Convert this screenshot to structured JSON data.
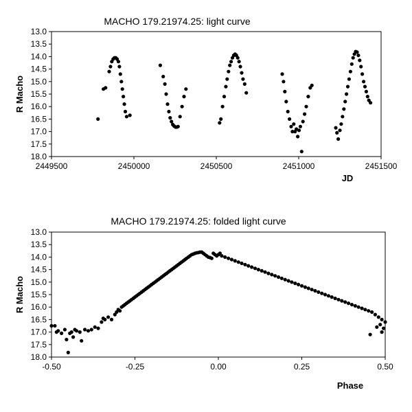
{
  "chart_data": [
    {
      "type": "scatter",
      "title": "MACHO 179.21974.25: light curve",
      "xlabel": "JD",
      "ylabel": "R Macho",
      "xlim": [
        2449500,
        2451500
      ],
      "ylim": [
        13.0,
        18.0
      ],
      "y_inverted": true,
      "grid": false,
      "legend": "none",
      "marker_color": "#000000",
      "xticks": [
        2449500,
        2450000,
        2450500,
        2451000,
        2451500
      ],
      "xtick_labels": [
        "2449500",
        "2450000",
        "2450500",
        "2451000",
        "2451500"
      ],
      "yticks": [
        13.0,
        13.5,
        14.0,
        14.5,
        15.0,
        15.5,
        16.0,
        16.5,
        17.0,
        17.5,
        18.0
      ],
      "ytick_labels": [
        "13.0",
        "13.5",
        "14.0",
        "14.5",
        "15.0",
        "15.5",
        "16.0",
        "16.5",
        "17.0",
        "17.5",
        "18.0"
      ],
      "points": [
        [
          2449782,
          16.5
        ],
        [
          2449815,
          15.3
        ],
        [
          2449828,
          15.25
        ],
        [
          2449850,
          14.6
        ],
        [
          2449858,
          14.4
        ],
        [
          2449866,
          14.2
        ],
        [
          2449874,
          14.1
        ],
        [
          2449882,
          14.05
        ],
        [
          2449890,
          14.05
        ],
        [
          2449898,
          14.1
        ],
        [
          2449906,
          14.2
        ],
        [
          2449912,
          14.4
        ],
        [
          2449918,
          14.7
        ],
        [
          2449924,
          15.0
        ],
        [
          2449930,
          15.3
        ],
        [
          2449936,
          15.6
        ],
        [
          2449942,
          15.9
        ],
        [
          2449948,
          16.2
        ],
        [
          2449956,
          16.4
        ],
        [
          2449976,
          16.35
        ],
        [
          2450160,
          14.35
        ],
        [
          2450178,
          14.8
        ],
        [
          2450188,
          15.1
        ],
        [
          2450196,
          15.5
        ],
        [
          2450204,
          15.9
        ],
        [
          2450212,
          16.2
        ],
        [
          2450220,
          16.45
        ],
        [
          2450228,
          16.6
        ],
        [
          2450236,
          16.72
        ],
        [
          2450244,
          16.78
        ],
        [
          2450252,
          16.82
        ],
        [
          2450260,
          16.82
        ],
        [
          2450268,
          16.8
        ],
        [
          2450280,
          16.4
        ],
        [
          2450292,
          16.0
        ],
        [
          2450304,
          15.6
        ],
        [
          2450316,
          15.3
        ],
        [
          2450520,
          16.65
        ],
        [
          2450528,
          16.5
        ],
        [
          2450538,
          16.0
        ],
        [
          2450548,
          15.6
        ],
        [
          2450558,
          15.2
        ],
        [
          2450566,
          14.9
        ],
        [
          2450574,
          14.6
        ],
        [
          2450582,
          14.35
        ],
        [
          2450590,
          14.2
        ],
        [
          2450598,
          14.05
        ],
        [
          2450606,
          13.95
        ],
        [
          2450614,
          13.9
        ],
        [
          2450622,
          13.95
        ],
        [
          2450630,
          14.05
        ],
        [
          2450638,
          14.2
        ],
        [
          2450646,
          14.4
        ],
        [
          2450654,
          14.65
        ],
        [
          2450662,
          14.9
        ],
        [
          2450672,
          15.1
        ],
        [
          2450682,
          15.45
        ],
        [
          2450900,
          14.7
        ],
        [
          2450908,
          15.0
        ],
        [
          2450916,
          15.4
        ],
        [
          2450924,
          15.8
        ],
        [
          2450934,
          16.2
        ],
        [
          2450944,
          16.5
        ],
        [
          2450954,
          16.8
        ],
        [
          2450962,
          17.0
        ],
        [
          2450970,
          16.7
        ],
        [
          2450978,
          17.0
        ],
        [
          2450986,
          16.9
        ],
        [
          2450994,
          17.2
        ],
        [
          2451002,
          16.95
        ],
        [
          2451010,
          16.8
        ],
        [
          2451018,
          17.8
        ],
        [
          2451026,
          16.6
        ],
        [
          2451036,
          16.3
        ],
        [
          2451046,
          16.0
        ],
        [
          2451058,
          15.6
        ],
        [
          2451070,
          15.25
        ],
        [
          2451080,
          15.15
        ],
        [
          2451225,
          16.85
        ],
        [
          2451232,
          17.05
        ],
        [
          2451240,
          17.3
        ],
        [
          2451250,
          16.95
        ],
        [
          2451258,
          16.7
        ],
        [
          2451266,
          16.4
        ],
        [
          2451274,
          16.1
        ],
        [
          2451282,
          15.8
        ],
        [
          2451290,
          15.5
        ],
        [
          2451298,
          15.2
        ],
        [
          2451306,
          14.9
        ],
        [
          2451314,
          14.6
        ],
        [
          2451322,
          14.3
        ],
        [
          2451330,
          14.05
        ],
        [
          2451338,
          13.9
        ],
        [
          2451346,
          13.8
        ],
        [
          2451354,
          13.82
        ],
        [
          2451362,
          13.95
        ],
        [
          2451370,
          14.15
        ],
        [
          2451378,
          14.4
        ],
        [
          2451386,
          14.7
        ],
        [
          2451394,
          15.0
        ],
        [
          2451402,
          15.2
        ],
        [
          2451410,
          15.4
        ],
        [
          2451418,
          15.6
        ],
        [
          2451426,
          15.75
        ],
        [
          2451436,
          15.85
        ]
      ]
    },
    {
      "type": "scatter",
      "title": "MACHO 179.21974.25: folded light curve",
      "xlabel": "Phase",
      "ylabel": "R Macho",
      "xlim": [
        -0.5,
        0.5
      ],
      "ylim": [
        13.0,
        18.0
      ],
      "y_inverted": true,
      "grid": false,
      "legend": "none",
      "marker_color": "#000000",
      "xticks": [
        -0.5,
        -0.25,
        0.0,
        0.25,
        0.5
      ],
      "xtick_labels": [
        "-0.50",
        "-0.25",
        "0.00",
        "0.25",
        "0.50"
      ],
      "yticks": [
        13.0,
        13.5,
        14.0,
        14.5,
        15.0,
        15.5,
        16.0,
        16.5,
        17.0,
        17.5,
        18.0
      ],
      "ytick_labels": [
        "13.0",
        "13.5",
        "14.0",
        "14.5",
        "15.0",
        "15.5",
        "16.0",
        "16.5",
        "17.0",
        "17.5",
        "18.0"
      ],
      "points": [
        [
          -0.5,
          16.75
        ],
        [
          -0.49,
          16.75
        ],
        [
          -0.485,
          17.0
        ],
        [
          -0.48,
          16.95
        ],
        [
          -0.47,
          17.05
        ],
        [
          -0.46,
          16.9
        ],
        [
          -0.455,
          17.3
        ],
        [
          -0.445,
          17.05
        ],
        [
          -0.44,
          17.0
        ],
        [
          -0.435,
          17.2
        ],
        [
          -0.43,
          16.9
        ],
        [
          -0.425,
          16.95
        ],
        [
          -0.45,
          17.82
        ],
        [
          -0.415,
          17.0
        ],
        [
          -0.41,
          17.35
        ],
        [
          -0.4,
          16.9
        ],
        [
          -0.39,
          16.95
        ],
        [
          -0.38,
          16.9
        ],
        [
          -0.37,
          16.8
        ],
        [
          -0.36,
          16.85
        ],
        [
          -0.35,
          16.6
        ],
        [
          -0.345,
          16.45
        ],
        [
          -0.34,
          16.5
        ],
        [
          -0.33,
          16.4
        ],
        [
          -0.32,
          16.5
        ],
        [
          -0.31,
          16.3
        ],
        [
          -0.305,
          16.2
        ],
        [
          -0.3,
          16.1
        ],
        [
          -0.295,
          16.15
        ],
        [
          -0.29,
          16.0
        ],
        [
          -0.285,
          15.95
        ],
        [
          -0.28,
          15.9
        ],
        [
          -0.275,
          15.85
        ],
        [
          -0.27,
          15.8
        ],
        [
          -0.265,
          15.75
        ],
        [
          -0.26,
          15.7
        ],
        [
          -0.255,
          15.65
        ],
        [
          -0.25,
          15.6
        ],
        [
          -0.245,
          15.55
        ],
        [
          -0.24,
          15.5
        ],
        [
          -0.235,
          15.45
        ],
        [
          -0.23,
          15.4
        ],
        [
          -0.225,
          15.35
        ],
        [
          -0.22,
          15.3
        ],
        [
          -0.215,
          15.25
        ],
        [
          -0.21,
          15.2
        ],
        [
          -0.205,
          15.15
        ],
        [
          -0.2,
          15.1
        ],
        [
          -0.195,
          15.05
        ],
        [
          -0.19,
          15.0
        ],
        [
          -0.185,
          14.95
        ],
        [
          -0.18,
          14.9
        ],
        [
          -0.175,
          14.85
        ],
        [
          -0.17,
          14.8
        ],
        [
          -0.165,
          14.75
        ],
        [
          -0.16,
          14.7
        ],
        [
          -0.155,
          14.65
        ],
        [
          -0.15,
          14.6
        ],
        [
          -0.145,
          14.55
        ],
        [
          -0.14,
          14.5
        ],
        [
          -0.135,
          14.45
        ],
        [
          -0.13,
          14.4
        ],
        [
          -0.125,
          14.35
        ],
        [
          -0.12,
          14.3
        ],
        [
          -0.115,
          14.25
        ],
        [
          -0.11,
          14.2
        ],
        [
          -0.105,
          14.15
        ],
        [
          -0.1,
          14.1
        ],
        [
          -0.095,
          14.05
        ],
        [
          -0.09,
          14.0
        ],
        [
          -0.085,
          13.95
        ],
        [
          -0.08,
          13.9
        ],
        [
          -0.075,
          13.88
        ],
        [
          -0.07,
          13.85
        ],
        [
          -0.065,
          13.83
        ],
        [
          -0.06,
          13.82
        ],
        [
          -0.055,
          13.8
        ],
        [
          -0.05,
          13.8
        ],
        [
          -0.045,
          13.85
        ],
        [
          -0.04,
          13.9
        ],
        [
          -0.035,
          13.95
        ],
        [
          -0.03,
          14.0
        ],
        [
          -0.025,
          14.02
        ],
        [
          -0.02,
          14.05
        ],
        [
          -0.015,
          13.85
        ],
        [
          -0.01,
          13.9
        ],
        [
          -0.005,
          13.95
        ],
        [
          0.0,
          13.9
        ],
        [
          0.005,
          13.85
        ],
        [
          0.01,
          13.95
        ],
        [
          0.02,
          14.0
        ],
        [
          0.03,
          14.05
        ],
        [
          0.04,
          14.1
        ],
        [
          0.05,
          14.15
        ],
        [
          0.06,
          14.2
        ],
        [
          0.07,
          14.25
        ],
        [
          0.08,
          14.3
        ],
        [
          0.09,
          14.35
        ],
        [
          0.1,
          14.4
        ],
        [
          0.11,
          14.45
        ],
        [
          0.12,
          14.5
        ],
        [
          0.13,
          14.55
        ],
        [
          0.14,
          14.6
        ],
        [
          0.15,
          14.65
        ],
        [
          0.16,
          14.7
        ],
        [
          0.17,
          14.75
        ],
        [
          0.18,
          14.8
        ],
        [
          0.19,
          14.85
        ],
        [
          0.2,
          14.9
        ],
        [
          0.21,
          14.95
        ],
        [
          0.22,
          15.0
        ],
        [
          0.23,
          15.05
        ],
        [
          0.24,
          15.1
        ],
        [
          0.25,
          15.15
        ],
        [
          0.26,
          15.2
        ],
        [
          0.27,
          15.25
        ],
        [
          0.28,
          15.3
        ],
        [
          0.29,
          15.35
        ],
        [
          0.3,
          15.4
        ],
        [
          0.31,
          15.45
        ],
        [
          0.32,
          15.5
        ],
        [
          0.33,
          15.55
        ],
        [
          0.34,
          15.6
        ],
        [
          0.35,
          15.65
        ],
        [
          0.36,
          15.7
        ],
        [
          0.37,
          15.75
        ],
        [
          0.38,
          15.8
        ],
        [
          0.39,
          15.85
        ],
        [
          0.4,
          15.9
        ],
        [
          0.41,
          15.95
        ],
        [
          0.42,
          16.0
        ],
        [
          0.43,
          16.05
        ],
        [
          0.44,
          16.1
        ],
        [
          0.45,
          16.15
        ],
        [
          0.46,
          16.2
        ],
        [
          0.47,
          16.3
        ],
        [
          0.48,
          16.4
        ],
        [
          0.49,
          16.5
        ],
        [
          0.5,
          16.6
        ],
        [
          0.455,
          17.1
        ],
        [
          0.475,
          16.8
        ],
        [
          0.485,
          16.7
        ],
        [
          0.495,
          16.85
        ],
        [
          0.49,
          17.0
        ]
      ]
    }
  ]
}
